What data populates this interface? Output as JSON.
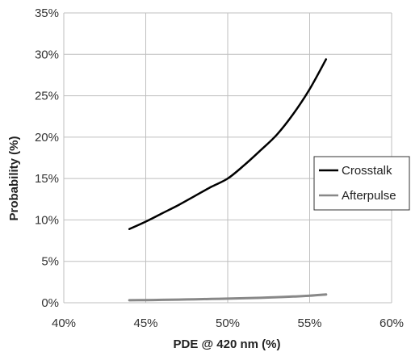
{
  "chart_data": {
    "type": "line",
    "title": "",
    "xlabel": "PDE @ 420 nm (%)",
    "ylabel": "Probability (%)",
    "xlim": [
      40,
      60
    ],
    "ylim": [
      0,
      35
    ],
    "x_ticks": [
      40,
      45,
      50,
      55,
      60
    ],
    "y_ticks": [
      0,
      5,
      10,
      15,
      20,
      25,
      30,
      35
    ],
    "x_tick_labels": [
      "40%",
      "45%",
      "50%",
      "55%",
      "60%"
    ],
    "y_tick_labels": [
      "0%",
      "5%",
      "10%",
      "15%",
      "20%",
      "25%",
      "30%",
      "35%"
    ],
    "grid": true,
    "legend_position": "right",
    "series": [
      {
        "name": "Crosstalk",
        "color": "#000000",
        "x": [
          44,
          45,
          46,
          47,
          48,
          49,
          50,
          51,
          52,
          53,
          54,
          55,
          56
        ],
        "y": [
          8.9,
          9.8,
          10.8,
          11.8,
          12.9,
          14.0,
          15.0,
          16.6,
          18.4,
          20.3,
          22.8,
          25.8,
          29.4
        ]
      },
      {
        "name": "Afterpulse",
        "color": "#888888",
        "x": [
          44,
          45,
          46,
          47,
          48,
          49,
          50,
          51,
          52,
          53,
          54,
          55,
          56
        ],
        "y": [
          0.3,
          0.32,
          0.35,
          0.38,
          0.42,
          0.46,
          0.5,
          0.55,
          0.6,
          0.67,
          0.75,
          0.85,
          1.0
        ]
      }
    ]
  }
}
